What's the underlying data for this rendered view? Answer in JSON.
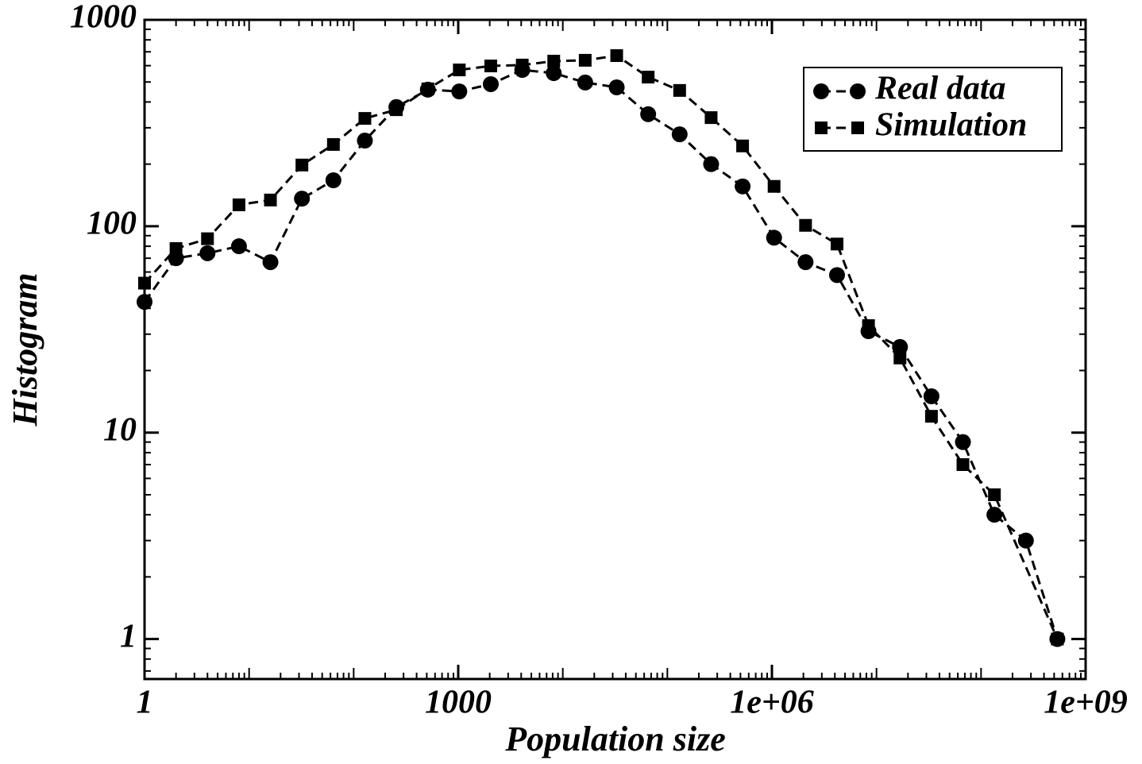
{
  "chart_data": {
    "type": "line",
    "xlabel": "Population size",
    "ylabel": "Histogram",
    "xscale": "log",
    "yscale": "log",
    "xlim": [
      1,
      1000000000
    ],
    "ylim": [
      0.64,
      1000
    ],
    "xticks": [
      1,
      1000,
      {
        "value": 1000000,
        "label": "1e+06"
      },
      {
        "value": 1000000000,
        "label": "1e+09"
      }
    ],
    "yticks": [
      1,
      10,
      100,
      1000
    ],
    "legend": "upper right",
    "series": [
      {
        "name": "Real data",
        "color": "#000000",
        "marker": "circle",
        "x": [
          1,
          2,
          4,
          8,
          16,
          32,
          64,
          128,
          256,
          512,
          1024,
          2048,
          4096,
          8192,
          16384,
          32768,
          65536,
          131072,
          262144,
          524288,
          1048576,
          2097152,
          4194304,
          8388608,
          16777216,
          33554432,
          67108864,
          134217728,
          268435456,
          536870912
        ],
        "values": [
          43,
          70,
          74,
          80,
          67,
          136,
          167,
          260,
          378,
          459,
          450,
          488,
          572,
          552,
          497,
          471,
          349,
          279,
          200,
          156,
          88,
          67,
          58,
          31,
          26,
          15,
          9,
          4,
          3,
          1
        ]
      },
      {
        "name": "Simulation",
        "color": "#000000",
        "marker": "square",
        "x": [
          1,
          2,
          4,
          8,
          16,
          32,
          64,
          128,
          256,
          512,
          1024,
          2048,
          4096,
          8192,
          16384,
          32768,
          65536,
          131072,
          262144,
          524288,
          1048576,
          2097152,
          4194304,
          8388608,
          16777216,
          33554432,
          67108864,
          134217728,
          536870912
        ],
        "values": [
          53,
          78,
          87,
          127,
          134,
          198,
          249,
          333,
          367,
          463,
          572,
          598,
          604,
          631,
          637,
          671,
          528,
          455,
          336,
          245,
          156,
          101,
          82,
          33,
          23,
          12,
          7,
          5,
          1
        ]
      }
    ]
  }
}
